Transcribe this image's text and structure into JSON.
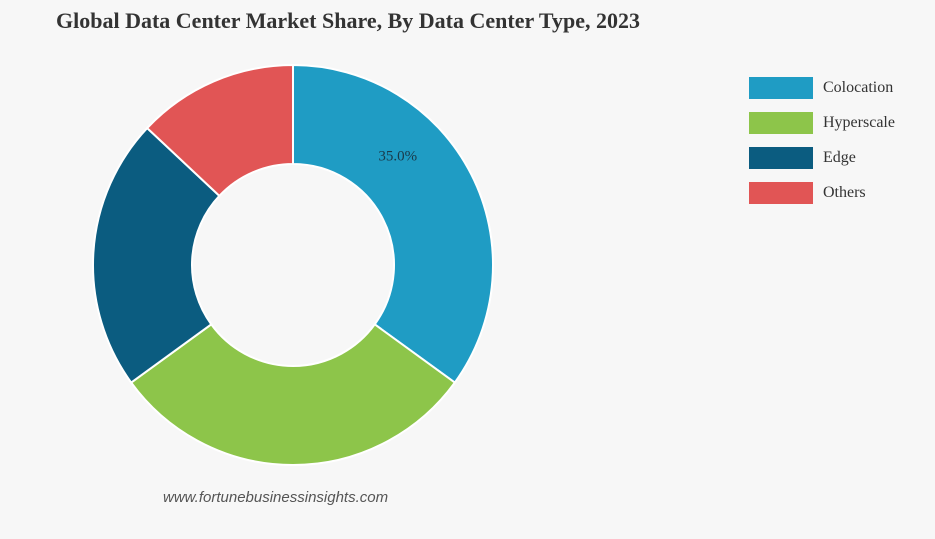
{
  "chart_data": {
    "type": "pie",
    "title": "Global Data Center Market Share, By Data Center Type, 2023",
    "categories": [
      "Colocation",
      "Hyperscale",
      "Edge",
      "Others"
    ],
    "values": [
      35.0,
      30.0,
      22.0,
      13.0
    ],
    "data_labels": [
      "35.0%",
      "",
      "",
      ""
    ],
    "colors": [
      "#1f9cc4",
      "#8dc54a",
      "#0b5c80",
      "#e15555"
    ],
    "donut": true,
    "legend_position": "right"
  },
  "source_text": "www.fortunebusinessinsights.com"
}
